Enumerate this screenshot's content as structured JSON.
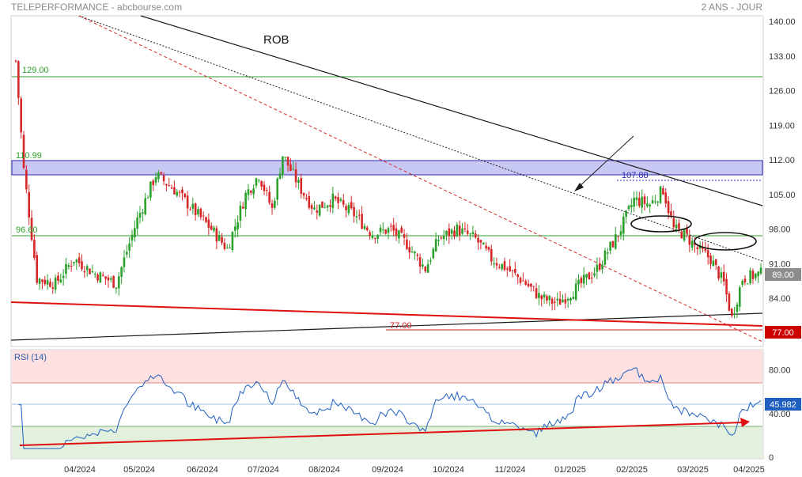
{
  "header": {
    "left": "TELEPERFORMANCE - abcbourse.com",
    "right": "2 ANS - JOUR"
  },
  "colors": {
    "up": "#2ca02c",
    "down": "#d62728",
    "resistance_band": "#c8c8f5",
    "rsi_line": "#1f5fbf",
    "overbought_zone": "#fde0e0",
    "oversold_zone": "#e2f1de",
    "last_price_bg": "#8c8c8c",
    "level_77_bg": "#cc0000"
  },
  "chart_data": [
    {
      "type": "candlestick",
      "annotation": "ROB",
      "y_ticks": [
        "140.00",
        "133.00",
        "126.00",
        "119.00",
        "112.00",
        "105.00",
        "98.00",
        "91.00",
        "84.00",
        "77.00"
      ],
      "ylim": [
        77,
        140
      ],
      "x_ticks": [
        "04/2024",
        "05/2024",
        "06/2024",
        "07/2024",
        "08/2024",
        "09/2024",
        "10/2024",
        "11/2024",
        "01/2025",
        "02/2025",
        "03/2025",
        "04/2025"
      ],
      "levels": [
        {
          "label": "129.00",
          "value": 129.0
        },
        {
          "label": "110.99",
          "value": 110.99
        },
        {
          "label": "96.60",
          "value": 96.6
        },
        {
          "label": "107.88",
          "value": 107.88
        },
        {
          "label": "77.00",
          "value": 77.0
        }
      ],
      "last_price": "89.00",
      "level_tag": "77.00",
      "close_path": [
        [
          0,
          132
        ],
        [
          3,
          110
        ],
        [
          8,
          88
        ],
        [
          15,
          87
        ],
        [
          22,
          92
        ],
        [
          30,
          89
        ],
        [
          38,
          87
        ],
        [
          46,
          100
        ],
        [
          53,
          109
        ],
        [
          60,
          106
        ],
        [
          67,
          102
        ],
        [
          74,
          98
        ],
        [
          80,
          94
        ],
        [
          87,
          105
        ],
        [
          92,
          109
        ],
        [
          97,
          102
        ],
        [
          101,
          113
        ],
        [
          104,
          110
        ],
        [
          108,
          106
        ],
        [
          113,
          102
        ],
        [
          120,
          104
        ],
        [
          128,
          101
        ],
        [
          135,
          97
        ],
        [
          142,
          98
        ],
        [
          148,
          95
        ],
        [
          155,
          90
        ],
        [
          160,
          96
        ],
        [
          167,
          98
        ],
        [
          174,
          96
        ],
        [
          180,
          92
        ],
        [
          186,
          90
        ],
        [
          193,
          87
        ],
        [
          199,
          84
        ],
        [
          205,
          83
        ],
        [
          212,
          86
        ],
        [
          220,
          90
        ],
        [
          228,
          97
        ],
        [
          234,
          104
        ],
        [
          240,
          103
        ],
        [
          245,
          106
        ],
        [
          249,
          98
        ],
        [
          253,
          97
        ],
        [
          258,
          94
        ],
        [
          263,
          92
        ],
        [
          268,
          87
        ],
        [
          271,
          80
        ],
        [
          275,
          88
        ],
        [
          282,
          89
        ]
      ]
    },
    {
      "type": "line",
      "title": "RSI (14)",
      "y_ticks": [
        "80.00",
        "40.00",
        "0"
      ],
      "ylim": [
        0,
        100
      ],
      "zones": {
        "overbought": 70,
        "oversold": 30
      },
      "last_value": "45.982"
    }
  ]
}
